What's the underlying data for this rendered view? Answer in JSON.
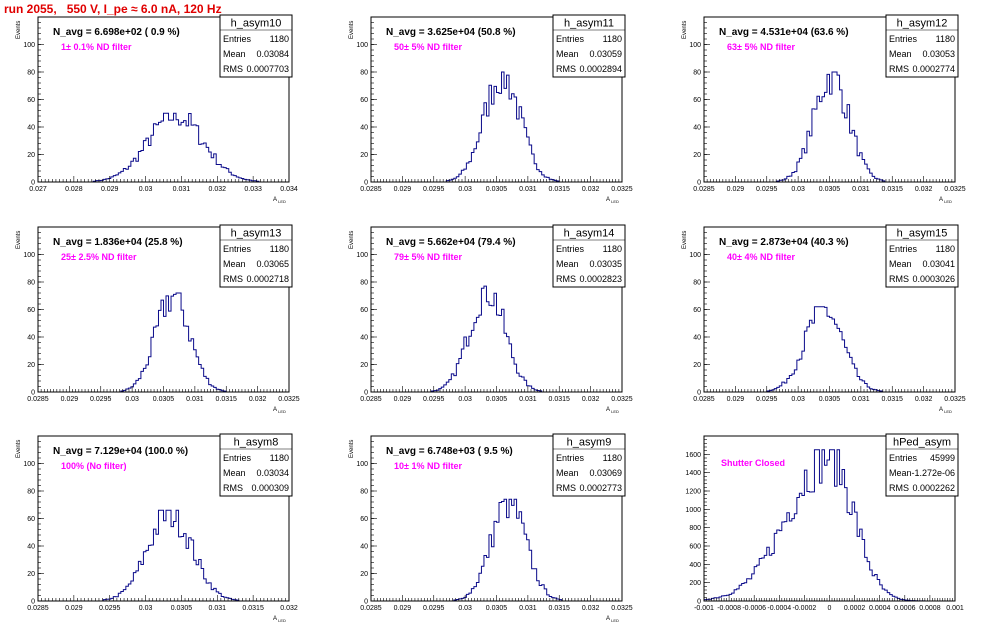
{
  "header": {
    "title": "run 2055,   550 V, I_pe ≈ 6.0 nA, 120 Hz"
  },
  "colors": {
    "header": "#e00000",
    "histogram": "#0a0a8a",
    "filter_label": "#ff00ff"
  },
  "chart_data": [
    {
      "type": "bar",
      "name": "h_asym10",
      "navg": "N_avg = 6.698e+02 ( 0.9 %)",
      "filter": "1± 0.1% ND filter",
      "stats": [
        [
          "Entries",
          "1180"
        ],
        [
          "Mean",
          "0.03084"
        ],
        [
          "RMS",
          "0.0007703"
        ]
      ],
      "ylabel": "Events",
      "xlabel": "A",
      "xlim": [
        0.027,
        0.034
      ],
      "ylim": [
        0,
        120
      ],
      "xticks": [
        "0.027",
        "0.028",
        "0.029",
        "0.03",
        "0.031",
        "0.032",
        "0.033",
        "0.034"
      ],
      "yticks": [
        "0",
        "20",
        "40",
        "60",
        "80",
        "100"
      ],
      "peak": 50,
      "mu": 0.03084,
      "sigma": 0.0007703
    },
    {
      "type": "bar",
      "name": "h_asym11",
      "navg": "N_avg = 3.625e+04 (50.8 %)",
      "filter": "50± 5% ND filter",
      "stats": [
        [
          "Entries",
          "1180"
        ],
        [
          "Mean",
          "0.03059"
        ],
        [
          "RMS",
          "0.0002894"
        ]
      ],
      "ylabel": "Events",
      "xlabel": "A",
      "xlim": [
        0.0285,
        0.0325
      ],
      "ylim": [
        0,
        120
      ],
      "xticks": [
        "0.0285",
        "0.029",
        "0.0295",
        "0.03",
        "0.0305",
        "0.031",
        "0.0315",
        "0.032",
        "0.0325"
      ],
      "yticks": [
        "0",
        "20",
        "40",
        "60",
        "80",
        "100"
      ],
      "peak": 80,
      "mu": 0.03059,
      "sigma": 0.0002894
    },
    {
      "type": "bar",
      "name": "h_asym12",
      "navg": "N_avg = 4.531e+04 (63.6 %)",
      "filter": "63± 5% ND filter",
      "stats": [
        [
          "Entries",
          "1180"
        ],
        [
          "Mean",
          "0.03053"
        ],
        [
          "RMS",
          "0.0002774"
        ]
      ],
      "ylabel": "Events",
      "xlabel": "A",
      "xlim": [
        0.0285,
        0.0325
      ],
      "ylim": [
        0,
        120
      ],
      "xticks": [
        "0.0285",
        "0.029",
        "0.0295",
        "0.03",
        "0.0305",
        "0.031",
        "0.0315",
        "0.032",
        "0.0325"
      ],
      "yticks": [
        "0",
        "20",
        "40",
        "60",
        "80",
        "100"
      ],
      "peak": 80,
      "mu": 0.03053,
      "sigma": 0.0002774
    },
    {
      "type": "bar",
      "name": "h_asym13",
      "navg": "N_avg = 1.836e+04 (25.8 %)",
      "filter": "25± 2.5% ND filter",
      "stats": [
        [
          "Entries",
          "1180"
        ],
        [
          "Mean",
          "0.03065"
        ],
        [
          "RMS",
          "0.0002718"
        ]
      ],
      "ylabel": "Events",
      "xlabel": "A",
      "xlim": [
        0.0285,
        0.0325
      ],
      "ylim": [
        0,
        120
      ],
      "xticks": [
        "0.0285",
        "0.029",
        "0.0295",
        "0.03",
        "0.0305",
        "0.031",
        "0.0315",
        "0.032",
        "0.0325"
      ],
      "yticks": [
        "0",
        "20",
        "40",
        "60",
        "80",
        "100"
      ],
      "peak": 72,
      "mu": 0.03065,
      "sigma": 0.0002718
    },
    {
      "type": "bar",
      "name": "h_asym14",
      "navg": "N_avg = 5.662e+04 (79.4 %)",
      "filter": "79± 5% ND filter",
      "stats": [
        [
          "Entries",
          "1180"
        ],
        [
          "Mean",
          "0.03035"
        ],
        [
          "RMS",
          "0.0002823"
        ]
      ],
      "ylabel": "Events",
      "xlabel": "A",
      "xlim": [
        0.0285,
        0.0325
      ],
      "ylim": [
        0,
        120
      ],
      "xticks": [
        "0.0285",
        "0.029",
        "0.0295",
        "0.03",
        "0.0305",
        "0.031",
        "0.0315",
        "0.032",
        "0.0325"
      ],
      "yticks": [
        "0",
        "20",
        "40",
        "60",
        "80",
        "100"
      ],
      "peak": 77,
      "mu": 0.03035,
      "sigma": 0.0002823
    },
    {
      "type": "bar",
      "name": "h_asym15",
      "navg": "N_avg = 2.873e+04 (40.3 %)",
      "filter": "40± 4% ND filter",
      "stats": [
        [
          "Entries",
          "1180"
        ],
        [
          "Mean",
          "0.03041"
        ],
        [
          "RMS",
          "0.0003026"
        ]
      ],
      "ylabel": "Events",
      "xlabel": "A",
      "xlim": [
        0.0285,
        0.0325
      ],
      "ylim": [
        0,
        120
      ],
      "xticks": [
        "0.0285",
        "0.029",
        "0.0295",
        "0.03",
        "0.0305",
        "0.031",
        "0.0315",
        "0.032",
        "0.0325"
      ],
      "yticks": [
        "0",
        "20",
        "40",
        "60",
        "80",
        "100"
      ],
      "peak": 62,
      "mu": 0.03041,
      "sigma": 0.0003026
    },
    {
      "type": "bar",
      "name": "h_asym8",
      "navg": "N_avg = 7.129e+04 (100.0 %)",
      "filter": "100% (No filter)",
      "stats": [
        [
          "Entries",
          "1180"
        ],
        [
          "Mean",
          "0.03034"
        ],
        [
          "RMS",
          "0.000309"
        ]
      ],
      "ylabel": "Events",
      "xlabel": "A",
      "xlim": [
        0.0285,
        0.032
      ],
      "ylim": [
        0,
        120
      ],
      "xticks": [
        "0.0285",
        "0.029",
        "0.0295",
        "0.03",
        "0.0305",
        "0.031",
        "0.0315",
        "0.032"
      ],
      "yticks": [
        "0",
        "20",
        "40",
        "60",
        "80",
        "100"
      ],
      "peak": 66,
      "mu": 0.03034,
      "sigma": 0.000309
    },
    {
      "type": "bar",
      "name": "h_asym9",
      "navg": "N_avg = 6.748e+03 ( 9.5 %)",
      "filter": "10± 1% ND filter",
      "stats": [
        [
          "Entries",
          "1180"
        ],
        [
          "Mean",
          "0.03069"
        ],
        [
          "RMS",
          "0.0002773"
        ]
      ],
      "ylabel": "Events",
      "xlabel": "A",
      "xlim": [
        0.0285,
        0.0325
      ],
      "ylim": [
        0,
        120
      ],
      "xticks": [
        "0.0285",
        "0.029",
        "0.0295",
        "0.03",
        "0.0305",
        "0.031",
        "0.0315",
        "0.032",
        "0.0325"
      ],
      "yticks": [
        "0",
        "20",
        "40",
        "60",
        "80",
        "100"
      ],
      "peak": 74,
      "mu": 0.03069,
      "sigma": 0.0002773
    },
    {
      "type": "bar",
      "name": "hPed_asym",
      "navg": "",
      "filter": "Shutter Closed",
      "stats": [
        [
          "Entries",
          "45999"
        ],
        [
          "Mean",
          "-1.272e-06"
        ],
        [
          "RMS",
          "0.0002262"
        ]
      ],
      "ylabel": "",
      "xlabel": "",
      "xlim": [
        -0.001,
        0.001
      ],
      "ylim": [
        0,
        1800
      ],
      "xticks": [
        "-0.001",
        "-0.0008",
        "-0.0006",
        "-0.0004",
        "-0.0002",
        "0",
        "0.0002",
        "0.0004",
        "0.0006",
        "0.0008",
        "0.001"
      ],
      "yticks": [
        "0",
        "200",
        "400",
        "600",
        "800",
        "1000",
        "1200",
        "1400",
        "1600"
      ],
      "peak": 1650,
      "mu": 0.0,
      "sigma": 0.0002262,
      "skew": true
    }
  ]
}
